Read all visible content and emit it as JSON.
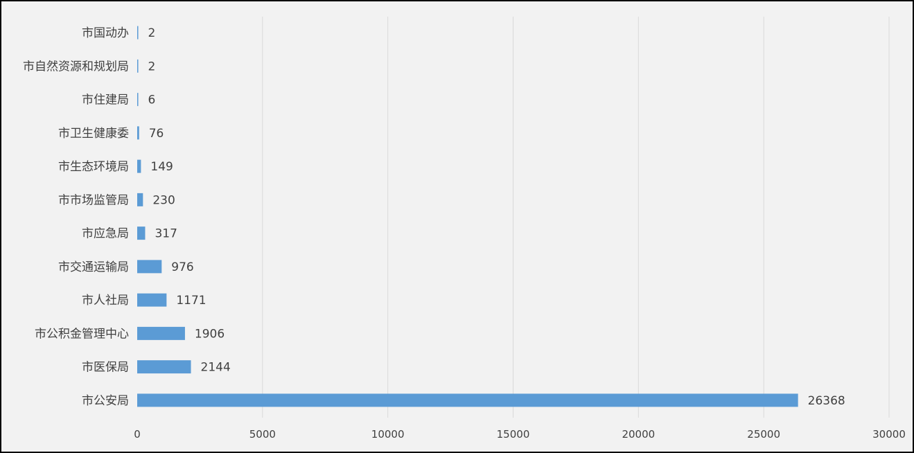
{
  "chart_data": {
    "type": "bar",
    "orientation": "horizontal",
    "title": "",
    "xlabel": "",
    "ylabel": "",
    "categories": [
      "市公安局",
      "市医保局",
      "市公积金管理中心",
      "市人社局",
      "市交通运输局",
      "市应急局",
      "市市场监管局",
      "市生态环境局",
      "市卫生健康委",
      "市住建局",
      "市自然资源和规划局",
      "市国动办"
    ],
    "values": [
      26368,
      2144,
      1906,
      1171,
      976,
      317,
      230,
      149,
      76,
      6,
      2,
      2
    ],
    "xlim": [
      0,
      30000
    ],
    "xticks": [
      0,
      5000,
      10000,
      15000,
      20000,
      25000,
      30000
    ],
    "grid": "vertical",
    "legend": "none",
    "data_labels": true,
    "colors": {
      "bar": "#5b9bd5",
      "background": "#f2f2f2",
      "grid": "#d9d9d9",
      "text": "#404040",
      "border": "#000000"
    }
  }
}
